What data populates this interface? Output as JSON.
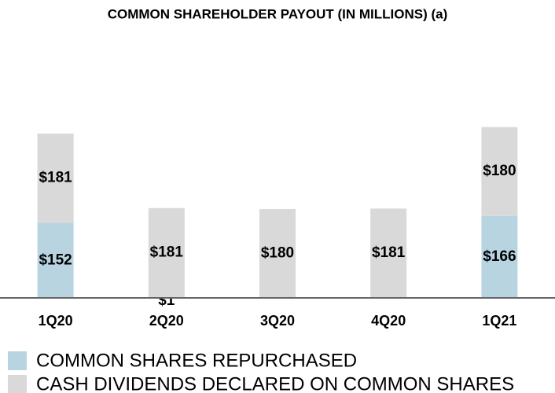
{
  "chart_data": {
    "type": "bar",
    "stacked": true,
    "title": "COMMON SHAREHOLDER PAYOUT (IN MILLIONS) (a)",
    "categories": [
      "1Q20",
      "2Q20",
      "3Q20",
      "4Q20",
      "1Q21"
    ],
    "series": [
      {
        "name": "COMMON SHARES REPURCHASED",
        "color": "#b9d4e1",
        "values": [
          152,
          1,
          0,
          0,
          166
        ],
        "value_labels": [
          "$152",
          "$1",
          null,
          null,
          "$166"
        ]
      },
      {
        "name": "CASH DIVIDENDS DECLARED ON COMMON SHARES",
        "color": "#d9d9d9",
        "values": [
          181,
          181,
          180,
          181,
          180
        ],
        "value_labels": [
          "$181",
          "$181",
          "$180",
          "$181",
          "$180"
        ]
      }
    ]
  }
}
